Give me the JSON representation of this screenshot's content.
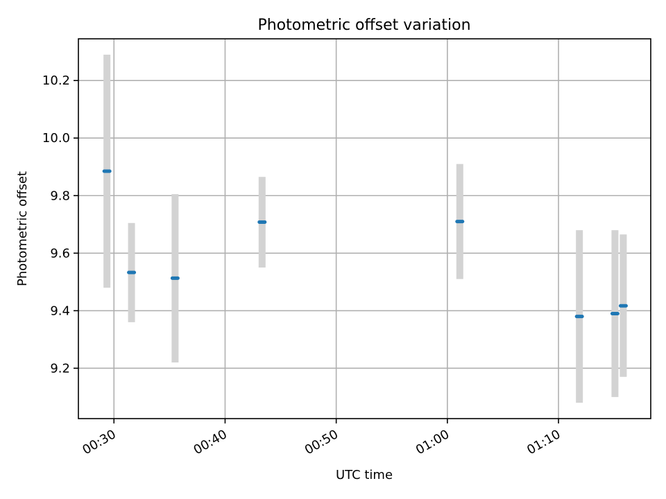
{
  "chart_data": {
    "type": "scatter",
    "title": "Photometric offset variation",
    "xlabel": "UTC time",
    "ylabel": "Photometric offset",
    "x_ticks": [
      "00:30",
      "00:40",
      "00:50",
      "01:00",
      "01:10"
    ],
    "x_tick_minutes": [
      30,
      40,
      50,
      60,
      70
    ],
    "y_ticks": [
      "9.2",
      "9.4",
      "9.6",
      "9.8",
      "10.0",
      "10.2"
    ],
    "y_tick_values": [
      9.2,
      9.4,
      9.6,
      9.8,
      10.0,
      10.2
    ],
    "xlim_minutes": [
      26.8,
      78.3
    ],
    "ylim": [
      9.025,
      10.345
    ],
    "grid": true,
    "colors": {
      "point": "#1f77b4",
      "errorbar": "#d3d3d3"
    },
    "points": [
      {
        "time": "00:29:22",
        "minutes": 29.37,
        "value": 9.885,
        "lower": 9.48,
        "upper": 10.29
      },
      {
        "time": "00:31:35",
        "minutes": 31.58,
        "value": 9.533,
        "lower": 9.36,
        "upper": 9.705
      },
      {
        "time": "00:35:30",
        "minutes": 35.5,
        "value": 9.513,
        "lower": 9.22,
        "upper": 9.805
      },
      {
        "time": "00:43:20",
        "minutes": 43.33,
        "value": 9.708,
        "lower": 9.55,
        "upper": 9.865
      },
      {
        "time": "01:01:07",
        "minutes": 61.12,
        "value": 9.71,
        "lower": 9.51,
        "upper": 9.91
      },
      {
        "time": "01:11:53",
        "minutes": 71.88,
        "value": 9.38,
        "lower": 9.08,
        "upper": 9.68
      },
      {
        "time": "01:15:05",
        "minutes": 75.08,
        "value": 9.39,
        "lower": 9.1,
        "upper": 9.68
      },
      {
        "time": "01:15:50",
        "minutes": 75.83,
        "value": 9.417,
        "lower": 9.17,
        "upper": 9.665
      }
    ]
  }
}
